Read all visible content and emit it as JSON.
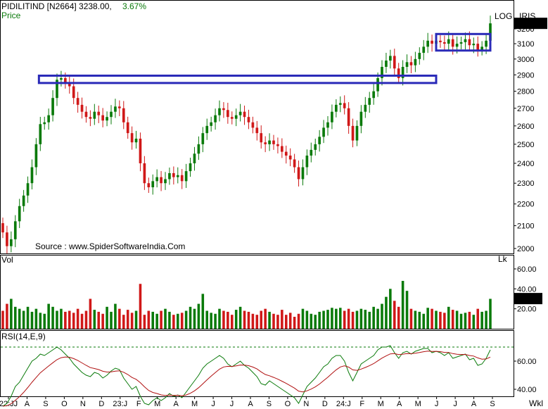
{
  "header": {
    "symbol_line": "PIDILITIND [N2664] 3238.00,",
    "change_pct": "3.67%",
    "price_label": "Price",
    "log_label": "LOG",
    "iris_label": "IRIS",
    "source": "Source : www.SpiderSoftwareIndia.Com"
  },
  "colors": {
    "up": "#0a7a0a",
    "down": "#d01818",
    "box": "#2a2ab8",
    "ma": "#b01010",
    "rsi": "#0a7a0a",
    "change": "#0a7a0a"
  },
  "price_panel": {
    "last_price": "3238.00",
    "y_ticks": [
      "3200",
      "3100",
      "3000",
      "2900",
      "2800",
      "2700",
      "2600",
      "2500",
      "2400",
      "2300",
      "2200",
      "2100",
      "2000"
    ]
  },
  "volume_panel": {
    "label": "Vol",
    "unit": "Lk",
    "last_value": "30.26",
    "y_ticks": [
      "60.00",
      "40.00",
      "20.00"
    ]
  },
  "rsi_panel": {
    "label": "RSI(14,E,9)",
    "y_ticks": [
      "60.00",
      "40.00"
    ],
    "reference_line": 70
  },
  "x_axis": {
    "labels": [
      "22:JJ",
      "A",
      "S",
      "O",
      "N",
      "D",
      "23:J",
      "F",
      "M",
      "A",
      "M",
      "J",
      "J",
      "A",
      "S",
      "O",
      "N",
      "D",
      "24:J",
      "F",
      "M",
      "A",
      "M",
      "J",
      "J",
      "A",
      "S"
    ],
    "period": "Wkl"
  },
  "annotations": [
    {
      "type": "resistance-box",
      "price_low": 2850,
      "price_high": 2895,
      "from": "2022-08",
      "to": "2024-06"
    },
    {
      "type": "consolidation-box",
      "price_low": 3055,
      "price_high": 3165,
      "from": "2024-06",
      "to": "2024-09"
    }
  ],
  "chart_data": {
    "type": "candlestick",
    "interval": "weekly",
    "scale": "log",
    "close": [
      2070,
      2010,
      2040,
      2120,
      2190,
      2240,
      2300,
      2380,
      2500,
      2610,
      2620,
      2660,
      2760,
      2870,
      2880,
      2850,
      2830,
      2760,
      2720,
      2680,
      2650,
      2640,
      2680,
      2660,
      2630,
      2650,
      2680,
      2710,
      2700,
      2620,
      2560,
      2510,
      2530,
      2400,
      2300,
      2280,
      2310,
      2330,
      2300,
      2320,
      2350,
      2330,
      2340,
      2310,
      2360,
      2400,
      2450,
      2500,
      2560,
      2600,
      2620,
      2660,
      2700,
      2690,
      2650,
      2640,
      2660,
      2680,
      2650,
      2620,
      2590,
      2560,
      2510,
      2500,
      2520,
      2500,
      2490,
      2460,
      2440,
      2420,
      2380,
      2320,
      2380,
      2440,
      2470,
      2500,
      2540,
      2590,
      2620,
      2680,
      2720,
      2730,
      2700,
      2600,
      2520,
      2600,
      2680,
      2720,
      2760,
      2800,
      2880,
      2950,
      2990,
      3020,
      2940,
      2880,
      2950,
      2980,
      2960,
      3000,
      3040,
      3080,
      3120,
      3100,
      3120,
      3110,
      3100,
      3130,
      3080,
      3100,
      3110,
      3130,
      3090,
      3100,
      3060,
      3080,
      3120,
      3238
    ],
    "rsi": [
      28,
      30,
      35,
      42,
      45,
      50,
      55,
      60,
      62,
      65,
      64,
      66,
      68,
      70,
      68,
      65,
      62,
      58,
      55,
      52,
      50,
      49,
      52,
      51,
      48,
      50,
      53,
      55,
      54,
      48,
      44,
      40,
      42,
      35,
      30,
      29,
      32,
      34,
      32,
      34,
      37,
      35,
      36,
      34,
      38,
      42,
      46,
      50,
      55,
      58,
      60,
      62,
      64,
      62,
      58,
      56,
      58,
      60,
      57,
      55,
      52,
      49,
      44,
      43,
      46,
      44,
      42,
      40,
      38,
      36,
      34,
      30,
      36,
      42,
      45,
      48,
      52,
      56,
      58,
      62,
      64,
      64,
      60,
      52,
      46,
      52,
      58,
      60,
      62,
      64,
      68,
      70,
      70,
      71,
      66,
      62,
      66,
      67,
      65,
      67,
      68,
      69,
      69,
      66,
      67,
      66,
      64,
      66,
      62,
      63,
      64,
      65,
      61,
      62,
      57,
      58,
      62,
      68
    ],
    "volume": [
      18,
      25,
      30,
      22,
      20,
      18,
      22,
      17,
      20,
      16,
      15,
      25,
      22,
      18,
      20,
      17,
      18,
      16,
      20,
      15,
      18,
      30,
      19,
      17,
      15,
      22,
      17,
      25,
      20,
      14,
      19,
      16,
      18,
      45,
      14,
      18,
      17,
      15,
      18,
      20,
      17,
      14,
      15,
      16,
      18,
      22,
      20,
      25,
      35,
      18,
      16,
      15,
      20,
      18,
      17,
      14,
      19,
      22,
      18,
      17,
      15,
      14,
      18,
      20,
      17,
      15,
      14,
      19,
      14,
      16,
      12,
      15,
      20,
      18,
      15,
      14,
      17,
      18,
      19,
      21,
      20,
      21,
      18,
      20,
      17,
      18,
      20,
      19,
      17,
      22,
      20,
      25,
      32,
      40,
      28,
      22,
      48,
      38,
      20,
      18,
      17,
      15,
      21,
      20,
      18,
      17,
      16,
      22,
      19,
      18,
      15,
      16,
      17,
      14,
      20,
      17,
      18,
      30
    ]
  }
}
